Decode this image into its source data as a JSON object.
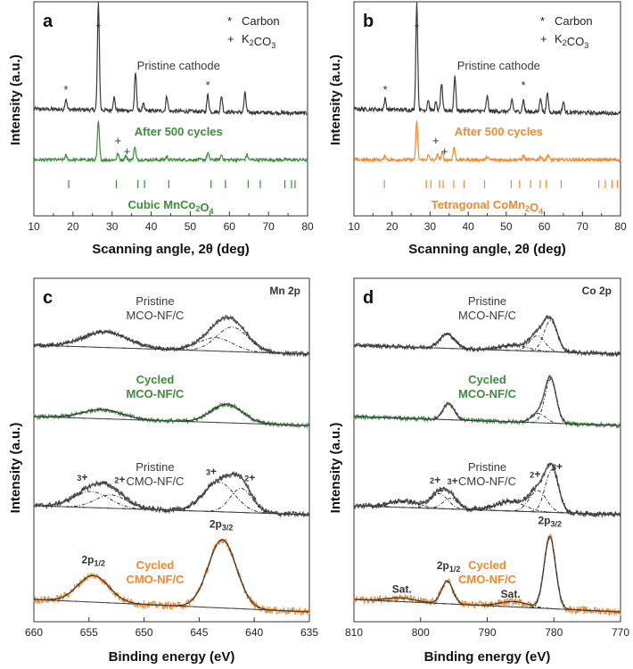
{
  "chart_data": [
    {
      "panel": "a",
      "type": "line",
      "xlabel": "Scanning angle, 2θ (deg)",
      "ylabel": "Intensity (a.u.)",
      "xlim": [
        10,
        80
      ],
      "x_ticks": [
        "10",
        "20",
        "30",
        "40",
        "50",
        "60",
        "70",
        "80"
      ],
      "legend": [
        {
          "symbol": "*",
          "label": "Carbon"
        },
        {
          "symbol": "+",
          "label": "K2CO3"
        }
      ],
      "series": [
        {
          "name": "Pristine cathode",
          "color": "#3a3a3a",
          "baseline": 0.3,
          "peaks": [
            [
              18.2,
              0.1
            ],
            [
              26.5,
              1.0
            ],
            [
              30.5,
              0.12
            ],
            [
              36.0,
              0.35
            ],
            [
              38.0,
              0.06
            ],
            [
              44.0,
              0.14
            ],
            [
              54.5,
              0.16
            ],
            [
              58.0,
              0.15
            ],
            [
              64.0,
              0.18
            ]
          ]
        },
        {
          "name": "After 500 cycles",
          "color": "#3c8c3c",
          "baseline": 0.22,
          "peaks": [
            [
              18.2,
              0.05
            ],
            [
              26.5,
              0.45
            ],
            [
              31.5,
              0.07
            ],
            [
              33.5,
              0.05
            ],
            [
              35.8,
              0.15
            ],
            [
              44.0,
              0.04
            ],
            [
              54.5,
              0.08
            ],
            [
              58.0,
              0.06
            ],
            [
              64.5,
              0.06
            ]
          ]
        }
      ],
      "annotations": {
        "carbon": [
          18.2,
          26.5,
          54.5
        ],
        "k2co3": [
          31.5,
          33.8
        ]
      },
      "reference": {
        "name": "Cubic MnCo2O4",
        "color": "#3c8c3c",
        "positions": [
          18.9,
          31.1,
          36.6,
          38.3,
          44.5,
          55.3,
          59.0,
          64.8,
          67.9,
          74.2,
          75.9,
          76.8
        ]
      }
    },
    {
      "panel": "b",
      "type": "line",
      "xlabel": "Scanning angle, 2θ (deg)",
      "ylabel": "Intensity (a.u.)",
      "xlim": [
        10,
        80
      ],
      "x_ticks": [
        "10",
        "20",
        "30",
        "40",
        "50",
        "60",
        "70",
        "80"
      ],
      "legend": [
        {
          "symbol": "*",
          "label": "Carbon"
        },
        {
          "symbol": "+",
          "label": "K2CO3"
        }
      ],
      "series": [
        {
          "name": "Pristine cathode",
          "color": "#3a3a3a",
          "baseline": 0.3,
          "peaks": [
            [
              18.2,
              0.1
            ],
            [
              26.5,
              1.0
            ],
            [
              29.5,
              0.1
            ],
            [
              31.5,
              0.07
            ],
            [
              33.0,
              0.25
            ],
            [
              36.5,
              0.33
            ],
            [
              45.0,
              0.14
            ],
            [
              51.5,
              0.12
            ],
            [
              54.5,
              0.11
            ],
            [
              59.0,
              0.14
            ],
            [
              60.8,
              0.18
            ],
            [
              65.0,
              0.1
            ]
          ]
        },
        {
          "name": "After 500 cycles",
          "color": "#f08a30",
          "baseline": 0.22,
          "peaks": [
            [
              18.2,
              0.05
            ],
            [
              26.5,
              0.45
            ],
            [
              29.5,
              0.05
            ],
            [
              32.0,
              0.06
            ],
            [
              33.2,
              0.08
            ],
            [
              36.3,
              0.15
            ],
            [
              45.0,
              0.04
            ],
            [
              54.5,
              0.05
            ],
            [
              59.0,
              0.04
            ],
            [
              61.0,
              0.06
            ]
          ]
        }
      ],
      "annotations": {
        "carbon": [
          18.2,
          26.5,
          54.5
        ],
        "k2co3": [
          31.5,
          33.8
        ]
      },
      "reference": {
        "name": "Tetragonal CoMn2O4",
        "color": "#f08a30",
        "positions": [
          18.0,
          29.0,
          30.2,
          32.5,
          33.4,
          36.2,
          38.9,
          44.3,
          51.3,
          53.5,
          56.4,
          58.9,
          60.5,
          64.4,
          74.3,
          76.0,
          77.8,
          79.2
        ]
      }
    },
    {
      "panel": "c",
      "type": "line",
      "title": "Mn 2p",
      "xlabel": "Binding energy (eV)",
      "ylabel": "Intensity (a.u.)",
      "xlim": [
        660,
        635
      ],
      "x_ticks": [
        "660",
        "655",
        "650",
        "645",
        "640",
        "635"
      ],
      "series": [
        {
          "name": "Pristine MCO-NF/C",
          "color": "#3a3a3a",
          "label_lines": [
            "Pristine",
            "MCO-NF/C"
          ],
          "components": [
            [
              653.5,
              2.8,
              0.35
            ],
            [
              642.0,
              2.0,
              0.55
            ],
            [
              643.5,
              2.2,
              0.3
            ]
          ]
        },
        {
          "name": "Cycled MCO-NF/C",
          "color": "#3c8c3c",
          "label_lines": [
            "Cycled",
            "MCO-NF/C"
          ],
          "components": [
            [
              653.8,
              2.5,
              0.2
            ],
            [
              642.5,
              2.0,
              0.4
            ]
          ]
        },
        {
          "name": "Pristine CMO-NF/C",
          "color": "#3a3a3a",
          "label_lines": [
            "Pristine",
            "CMO-NF/C"
          ],
          "components": [
            [
              654.8,
              2.3,
              0.3
            ],
            [
              653.0,
              2.0,
              0.25
            ],
            [
              643.2,
              2.0,
              0.55
            ],
            [
              641.2,
              1.4,
              0.45
            ]
          ],
          "labels": [
            {
              "text": "3+",
              "x": 655.6
            },
            {
              "text": "2+",
              "x": 652.2
            },
            {
              "text": "3+",
              "x": 643.9
            },
            {
              "text": "2+",
              "x": 640.4
            }
          ]
        },
        {
          "name": "Cycled CMO-NF/C",
          "color": "#f08a30",
          "label_lines": [
            "Cycled",
            "CMO-NF/C"
          ],
          "components": [
            [
              654.6,
              2.0,
              0.35
            ],
            [
              642.9,
              1.8,
              0.9
            ]
          ],
          "labels": [
            {
              "text": "2p1/2",
              "x": 654.6
            },
            {
              "text": "2p3/2",
              "x": 643.0
            }
          ]
        }
      ]
    },
    {
      "panel": "d",
      "type": "line",
      "title": "Co 2p",
      "xlabel": "Binding energy (eV)",
      "ylabel": "Intensity (a.u.)",
      "xlim": [
        810,
        770
      ],
      "x_ticks": [
        "810",
        "800",
        "790",
        "780",
        "770"
      ],
      "series": [
        {
          "name": "Pristine MCO-NF/C",
          "color": "#3a3a3a",
          "label_lines": [
            "Pristine",
            "MCO-NF/C"
          ],
          "components": [
            [
              796.0,
              1.6,
              0.32
            ],
            [
              780.5,
              1.4,
              0.7
            ],
            [
              782.5,
              1.6,
              0.35
            ],
            [
              786.0,
              3.0,
              0.12
            ]
          ]
        },
        {
          "name": "Cycled MCO-NF/C",
          "color": "#3c8c3c",
          "label_lines": [
            "Cycled",
            "MCO-NF/C"
          ],
          "components": [
            [
              795.8,
              1.2,
              0.35
            ],
            [
              780.5,
              1.2,
              0.95
            ],
            [
              782.3,
              1.5,
              0.2
            ]
          ]
        },
        {
          "name": "Pristine CMO-NF/C",
          "color": "#3a3a3a",
          "label_lines": [
            "Pristine",
            "CMO-NF/C"
          ],
          "components": [
            [
              797.2,
              1.8,
              0.28
            ],
            [
              795.5,
              1.6,
              0.2
            ],
            [
              782.4,
              1.8,
              0.4
            ],
            [
              780.3,
              1.4,
              0.8
            ],
            [
              802.5,
              3.0,
              0.12
            ],
            [
              786.5,
              3.0,
              0.18
            ]
          ],
          "labels": [
            {
              "text": "2+",
              "x": 797.8
            },
            {
              "text": "3+",
              "x": 795.2
            },
            {
              "text": "2+",
              "x": 782.8
            },
            {
              "text": "3+",
              "x": 779.5
            }
          ]
        },
        {
          "name": "Cycled CMO-NF/C",
          "color": "#f08a30",
          "label_lines": [
            "Cycled",
            "CMO-NF/C"
          ],
          "components": [
            [
              796.0,
              1.2,
              0.3
            ],
            [
              780.6,
              1.2,
              0.95
            ],
            [
              803.0,
              3.0,
              0.05
            ],
            [
              786.0,
              3.0,
              0.07
            ]
          ],
          "labels": [
            {
              "text": "Sat.",
              "x": 802.8
            },
            {
              "text": "2p1/2",
              "x": 795.8
            },
            {
              "text": "Sat.",
              "x": 786.5
            },
            {
              "text": "2p3/2",
              "x": 780.6
            }
          ]
        }
      ]
    }
  ]
}
